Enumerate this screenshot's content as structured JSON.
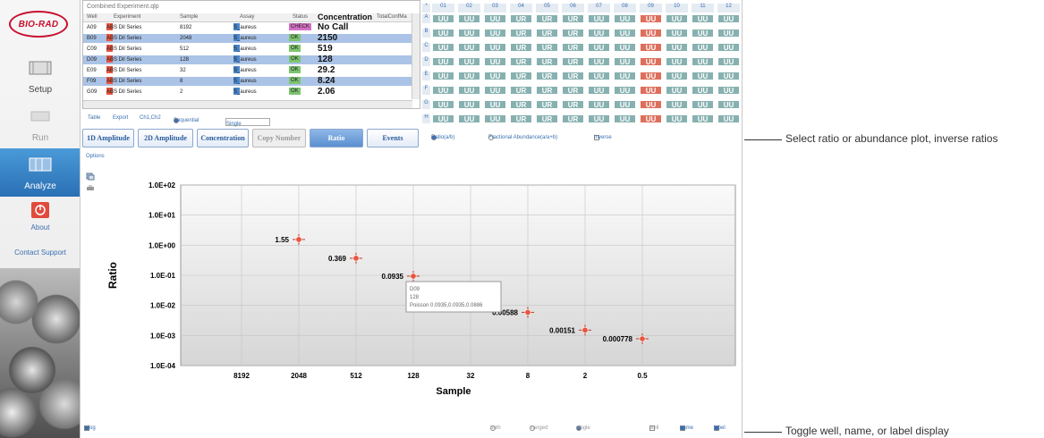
{
  "brand": "BIO-RAD",
  "sidebar": {
    "setup": "Setup",
    "run": "Run",
    "analyze": "Analyze",
    "about": "About",
    "contact": "Contact Support"
  },
  "experiment_title": "Combined Experiment.qlp",
  "table": {
    "columns": [
      "Well",
      "Experiment",
      "Sample",
      "Assay",
      "Status",
      "Concentration",
      "TotalConfMa"
    ],
    "rows": [
      {
        "well": "A09",
        "experiment": "ABS Dil Series",
        "sample": "8192",
        "assay": "S_aureus",
        "status": "CHECK",
        "conc": "No Call"
      },
      {
        "well": "B09",
        "experiment": "ABS Dil Series",
        "sample": "2048",
        "assay": "S_aureus",
        "status": "OK",
        "conc": "2150"
      },
      {
        "well": "C09",
        "experiment": "ABS Dil Series",
        "sample": "512",
        "assay": "S_aureus",
        "status": "OK",
        "conc": "519"
      },
      {
        "well": "D09",
        "experiment": "ABS Dil Series",
        "sample": "128",
        "assay": "S_aureus",
        "status": "OK",
        "conc": "128"
      },
      {
        "well": "E09",
        "experiment": "ABS Dil Series",
        "sample": "32",
        "assay": "S_aureus",
        "status": "OK",
        "conc": "29.2"
      },
      {
        "well": "F09",
        "experiment": "ABS Dil Series",
        "sample": "8",
        "assay": "S_aureus",
        "status": "OK",
        "conc": "8.24"
      },
      {
        "well": "G09",
        "experiment": "ABS Dil Series",
        "sample": "2",
        "assay": "S_aureus",
        "status": "OK",
        "conc": "2.06"
      }
    ],
    "toolbar": {
      "table": "Table",
      "export": "Export",
      "channels": "Ch1,Ch2",
      "sequential": "Sequential",
      "single": "Single"
    }
  },
  "plate": {
    "columns": [
      "01",
      "02",
      "03",
      "04",
      "05",
      "06",
      "07",
      "08",
      "09",
      "10",
      "11",
      "12"
    ],
    "rows": [
      "A",
      "B",
      "C",
      "D",
      "E",
      "F",
      "G",
      "H"
    ],
    "cell_code": "UU",
    "cell_code_r": "UR",
    "highlight_col": "09",
    "colors": {
      "cell": "#87b1b0",
      "highlight": "#dd6f5b"
    }
  },
  "tabs": [
    "1D Amplitude",
    "2D Amplitude",
    "Concentration",
    "Copy Number",
    "Ratio",
    "Events"
  ],
  "active_tab": "Ratio",
  "options": {
    "ratio": "Ratio(a/b)",
    "fractional": "Fractional Abundance(a/a+b)",
    "inverse": "Inverse",
    "options_link": "Options"
  },
  "chart_data": {
    "type": "scatter",
    "xlabel": "Sample",
    "ylabel": "Ratio",
    "y_scale": "log",
    "ylim": [
      0.0001,
      100
    ],
    "yticks": [
      "1.0E+02",
      "1.0E+01",
      "1.0E+00",
      "1.0E-01",
      "1.0E-02",
      "1.0E-03",
      "1.0E-04"
    ],
    "categories": [
      "8192",
      "2048",
      "512",
      "128",
      "32",
      "8",
      "2",
      "0.5"
    ],
    "points": [
      {
        "x": "2048",
        "y": 1.55,
        "label": "1.55"
      },
      {
        "x": "512",
        "y": 0.369,
        "label": "0.369"
      },
      {
        "x": "128",
        "y": 0.0935,
        "label": "0.0935"
      },
      {
        "x": "8",
        "y": 0.00588,
        "label": "0.00588"
      },
      {
        "x": "2",
        "y": 0.00151,
        "label": "0.00151"
      },
      {
        "x": "0.5",
        "y": 0.000778,
        "label": "0.000778"
      }
    ],
    "tooltip": {
      "line1": "D09",
      "line2": "128",
      "line3": "Poisson 0.0935,0.0935,0.0886"
    },
    "grid": true
  },
  "bottom": {
    "ylog": "y log",
    "both": "both",
    "merged": "merged",
    "single": "single",
    "well": "well",
    "name": "name",
    "label": "label"
  },
  "callouts": {
    "top": "Select ratio or abundance plot, inverse ratios",
    "bottom": "Toggle well, name, or label display"
  }
}
